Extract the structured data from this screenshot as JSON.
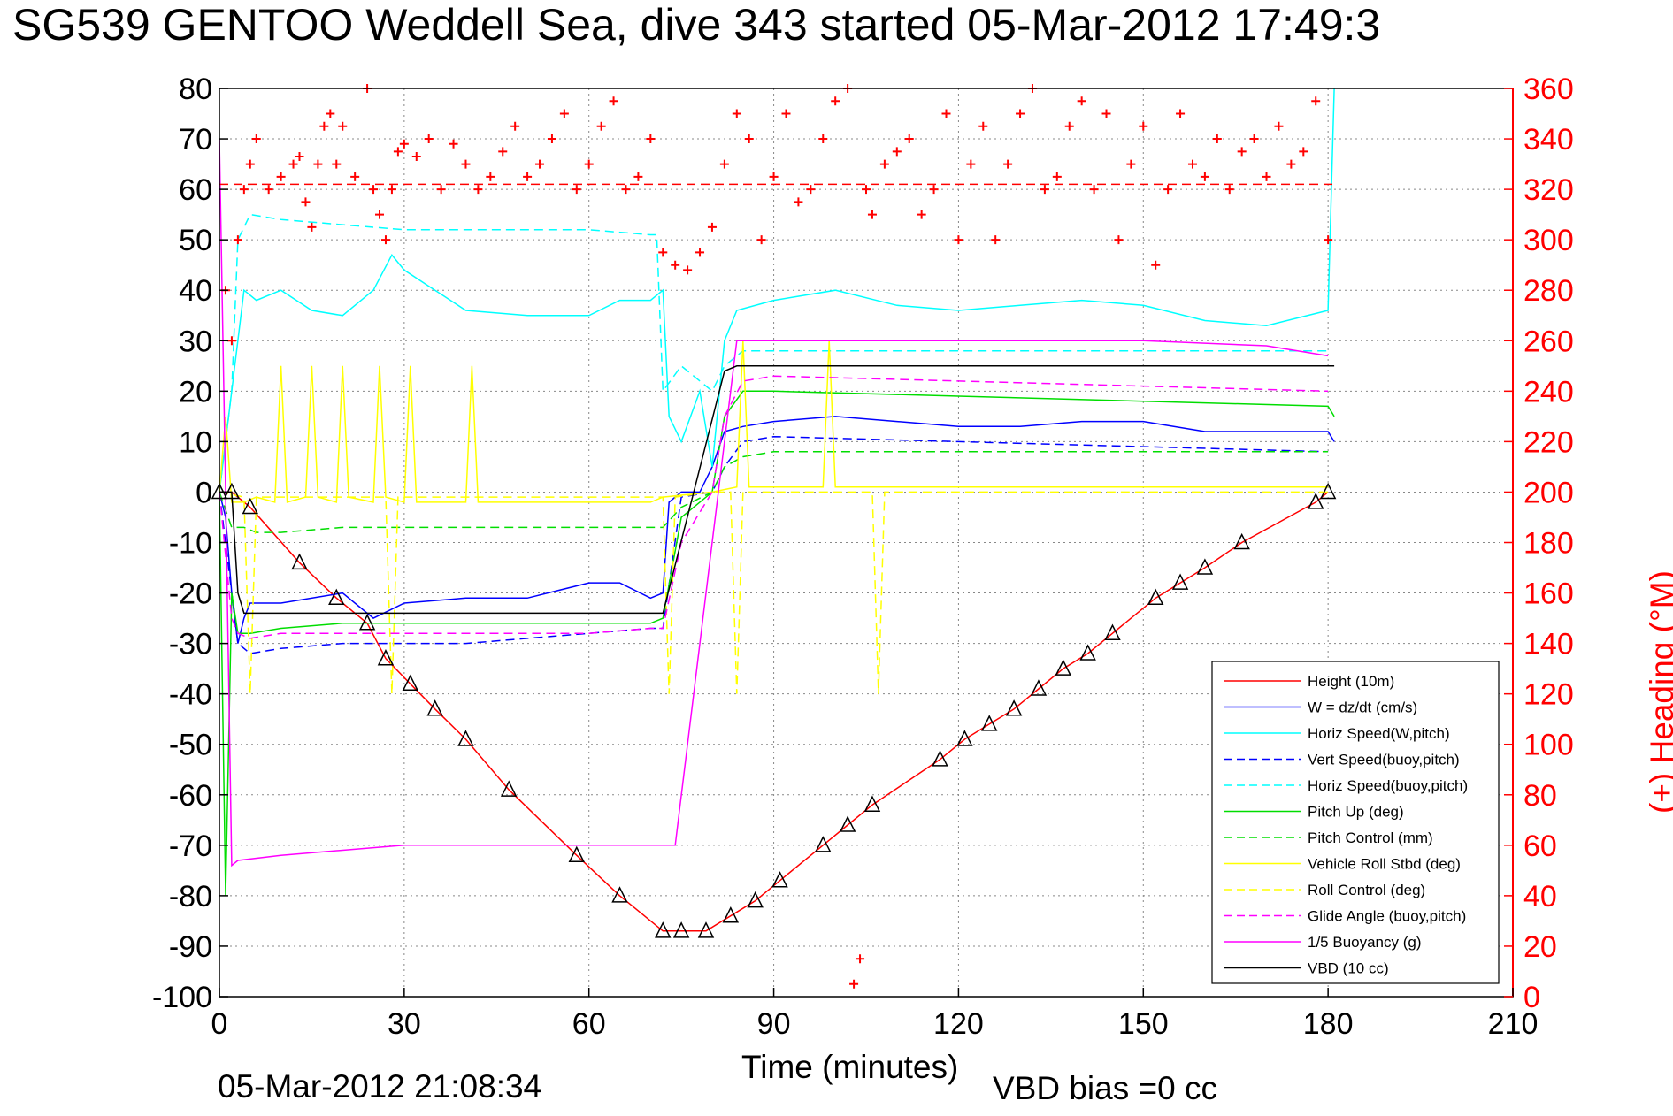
{
  "title": "SG539 GENTOO Weddell Sea, dive 343 started 05-Mar-2012 17:49:3",
  "timestamp": "05-Mar-2012 21:08:34",
  "vbd_bias": "VBD bias =0 cc",
  "colors": {
    "height": "#ff0000",
    "w": "#0000ff",
    "horiz": "#00ffff",
    "pitch": "#00dd00",
    "roll": "#ffff00",
    "glide": "#ff00ff",
    "buoyancy": "#ff00ff",
    "vbd": "#000000",
    "heading": "#ff0000"
  },
  "chart_data": {
    "type": "line",
    "xlabel": "Time (minutes)",
    "ylabel": "",
    "y2label": "(+) Heading (°M)",
    "xlim": [
      0,
      210
    ],
    "ylim": [
      -100,
      80
    ],
    "y2lim": [
      0,
      360
    ],
    "xticks": [
      0,
      30,
      60,
      90,
      120,
      150,
      180,
      210
    ],
    "yticks": [
      80,
      70,
      60,
      50,
      40,
      30,
      20,
      10,
      0,
      -10,
      -20,
      -30,
      -40,
      -50,
      -60,
      -70,
      -80,
      -90,
      -100
    ],
    "y2ticks": [
      360,
      340,
      320,
      300,
      280,
      260,
      240,
      220,
      200,
      180,
      160,
      140,
      120,
      100,
      80,
      60,
      40,
      20,
      0
    ],
    "grid": true,
    "legend_position": "bottom-right",
    "legend": [
      "Height (10m)",
      "W = dz/dt (cm/s)",
      "Horiz Speed(W,pitch)",
      "Vert Speed(buoy,pitch)",
      "Horiz Speed(buoy,pitch)",
      "Pitch Up (deg)",
      "Pitch Control (mm)",
      "Vehicle Roll Stbd (deg)",
      "Roll Control (deg)",
      "Glide Angle (buoy,pitch)",
      "1/5 Buoyancy (g)",
      "VBD (10 cc)"
    ],
    "series": [
      {
        "name": "Height (10m)",
        "color": "#ff0000",
        "style": "solid",
        "marker": "triangle",
        "x": [
          0,
          2,
          5,
          13,
          19,
          24,
          27,
          31,
          35,
          40,
          47,
          58,
          65,
          72,
          75,
          79,
          83,
          87,
          91,
          98,
          102,
          106,
          117,
          121,
          125,
          129,
          133,
          137,
          141,
          145,
          152,
          156,
          160,
          166,
          178,
          180
        ],
        "y": [
          0,
          0,
          -3,
          -14,
          -21,
          -26,
          -33,
          -38,
          -43,
          -49,
          -59,
          -72,
          -80,
          -87,
          -87,
          -87,
          -84,
          -81,
          -77,
          -70,
          -66,
          -62,
          -53,
          -49,
          -46,
          -43,
          -39,
          -35,
          -32,
          -28,
          -21,
          -18,
          -15,
          -10,
          -2,
          0
        ]
      },
      {
        "name": "W = dz/dt (cm/s)",
        "color": "#0000ff",
        "style": "solid",
        "x": [
          0,
          1,
          2,
          3,
          4,
          5,
          10,
          20,
          25,
          30,
          40,
          50,
          60,
          65,
          70,
          72,
          73,
          75,
          78,
          80,
          82,
          85,
          90,
          100,
          110,
          120,
          130,
          140,
          150,
          160,
          170,
          180,
          181
        ],
        "y": [
          0,
          -5,
          -20,
          -30,
          -25,
          -22,
          -22,
          -20,
          -25,
          -22,
          -21,
          -21,
          -18,
          -18,
          -21,
          -20,
          -2,
          0,
          0,
          5,
          12,
          13,
          14,
          15,
          14,
          13,
          13,
          14,
          14,
          12,
          12,
          12,
          10
        ]
      },
      {
        "name": "Horiz Speed(W,pitch)",
        "color": "#00ffff",
        "style": "solid",
        "x": [
          0,
          2,
          4,
          6,
          10,
          15,
          20,
          25,
          28,
          30,
          35,
          40,
          50,
          60,
          65,
          70,
          72,
          73,
          75,
          78,
          80,
          82,
          84,
          90,
          100,
          110,
          120,
          130,
          140,
          150,
          160,
          170,
          180,
          181
        ],
        "y": [
          0,
          20,
          40,
          38,
          40,
          36,
          35,
          40,
          47,
          44,
          40,
          36,
          35,
          35,
          38,
          38,
          40,
          15,
          10,
          20,
          5,
          30,
          36,
          38,
          40,
          37,
          36,
          37,
          38,
          37,
          34,
          33,
          36,
          80
        ]
      },
      {
        "name": "Vert Speed(buoy,pitch)",
        "color": "#0000ff",
        "style": "dashed",
        "x": [
          0,
          2,
          3,
          5,
          10,
          20,
          30,
          40,
          50,
          60,
          70,
          72,
          75,
          80,
          82,
          85,
          90,
          120,
          150,
          180
        ],
        "y": [
          0,
          -20,
          -30,
          -32,
          -31,
          -30,
          -30,
          -30,
          -29,
          -28,
          -27,
          -27,
          -1,
          0,
          5,
          10,
          11,
          10,
          9,
          8
        ]
      },
      {
        "name": "Horiz Speed(buoy,pitch)",
        "color": "#00ffff",
        "style": "dashed",
        "x": [
          0,
          2,
          3,
          5,
          10,
          20,
          30,
          40,
          50,
          60,
          70,
          71,
          72,
          75,
          80,
          82,
          85,
          90,
          120,
          150,
          180
        ],
        "y": [
          0,
          20,
          50,
          55,
          54,
          53,
          52,
          52,
          52,
          52,
          51,
          51,
          20,
          25,
          20,
          25,
          28,
          28,
          28,
          28,
          28
        ]
      },
      {
        "name": "Pitch Up (deg)",
        "color": "#00dd00",
        "style": "solid",
        "x": [
          0,
          1,
          2,
          3,
          5,
          10,
          20,
          30,
          40,
          50,
          60,
          70,
          72,
          75,
          80,
          82,
          85,
          90,
          120,
          150,
          180,
          181
        ],
        "y": [
          0,
          -80,
          -20,
          -28,
          -28,
          -27,
          -26,
          -26,
          -26,
          -26,
          -26,
          -26,
          -25,
          -5,
          0,
          15,
          20,
          20,
          19,
          18,
          17,
          15
        ]
      },
      {
        "name": "Pitch Control (mm)",
        "color": "#00dd00",
        "style": "dashed",
        "x": [
          0,
          2,
          4,
          6,
          10,
          20,
          30,
          40,
          50,
          60,
          70,
          72,
          75,
          80,
          82,
          85,
          90,
          120,
          150,
          180
        ],
        "y": [
          0,
          -7,
          -7,
          -8,
          -8,
          -7,
          -7,
          -7,
          -7,
          -7,
          -7,
          -7,
          -3,
          0,
          5,
          7,
          8,
          8,
          8,
          8
        ]
      },
      {
        "name": "Vehicle Roll Stbd (deg)",
        "color": "#ffff00",
        "style": "solid",
        "x": [
          0,
          1,
          2,
          4,
          6,
          9,
          10,
          11,
          14,
          15,
          16,
          19,
          20,
          21,
          25,
          26,
          27,
          30,
          31,
          32,
          40,
          41,
          42,
          50,
          60,
          70,
          72,
          80,
          84,
          85,
          86,
          90,
          98,
          99,
          100,
          110,
          120,
          130,
          140,
          150,
          160,
          170,
          180
        ],
        "y": [
          0,
          15,
          -2,
          -2,
          -1,
          -2,
          25,
          -2,
          -1,
          25,
          -1,
          -2,
          25,
          -1,
          -2,
          25,
          -1,
          -2,
          25,
          -2,
          -2,
          25,
          -2,
          -2,
          -2,
          -2,
          -1,
          0,
          1,
          30,
          1,
          1,
          1,
          30,
          1,
          1,
          1,
          1,
          1,
          1,
          1,
          1,
          1
        ]
      },
      {
        "name": "Roll Control (deg)",
        "color": "#ffff00",
        "style": "dashed",
        "x": [
          0,
          4,
          5,
          6,
          20,
          27,
          28,
          29,
          40,
          60,
          70,
          72,
          73,
          74,
          80,
          83,
          84,
          85,
          90,
          100,
          106,
          107,
          108,
          120,
          140,
          160,
          180
        ],
        "y": [
          0,
          -1,
          -40,
          -1,
          -1,
          -1,
          -40,
          -1,
          -1,
          -1,
          -1,
          -1,
          -40,
          -1,
          0,
          0,
          -40,
          0,
          0,
          0,
          0,
          -40,
          0,
          0,
          0,
          0,
          0
        ]
      },
      {
        "name": "Glide Angle (buoy,pitch)",
        "color": "#ff00ff",
        "style": "dashed",
        "x": [
          0,
          2,
          3,
          5,
          10,
          20,
          30,
          40,
          50,
          60,
          70,
          72,
          75,
          80,
          82,
          85,
          90,
          120,
          150,
          180
        ],
        "y": [
          0,
          -25,
          -28,
          -29,
          -28,
          -28,
          -28,
          -28,
          -28,
          -28,
          -27,
          -27,
          -10,
          0,
          15,
          22,
          23,
          22,
          21,
          20
        ]
      },
      {
        "name": "1/5 Buoyancy (g)",
        "color": "#ff00ff",
        "style": "solid",
        "x": [
          0,
          1,
          2,
          3,
          10,
          20,
          30,
          40,
          50,
          60,
          70,
          74,
          84,
          90,
          120,
          150,
          170,
          180
        ],
        "y": [
          70,
          0,
          -74,
          -73,
          -72,
          -71,
          -70,
          -70,
          -70,
          -70,
          -70,
          -70,
          30,
          30,
          30,
          30,
          29,
          27
        ]
      },
      {
        "name": "VBD (10 cc)",
        "color": "#000000",
        "style": "solid",
        "x": [
          0,
          2,
          3,
          4,
          5,
          60,
          70,
          72,
          82,
          84,
          120,
          150,
          180,
          181
        ],
        "y": [
          0,
          0,
          -20,
          -24,
          -24,
          -24,
          -24,
          -24,
          24,
          25,
          25,
          25,
          25,
          25
        ]
      },
      {
        "name": "",
        "color": "#ff0000",
        "style": "dashed",
        "axis": "right",
        "x": [
          0,
          181
        ],
        "y": [
          322,
          322
        ]
      },
      {
        "name": "",
        "color": "#ff0000",
        "style": "plus-markers",
        "axis": "right",
        "x": [
          1,
          2,
          3,
          4,
          5,
          6,
          8,
          10,
          12,
          13,
          14,
          15,
          16,
          17,
          18,
          19,
          20,
          22,
          24,
          25,
          26,
          27,
          28,
          29,
          30,
          32,
          34,
          36,
          38,
          40,
          42,
          44,
          46,
          48,
          50,
          52,
          54,
          56,
          58,
          60,
          62,
          64,
          66,
          68,
          70,
          72,
          74,
          76,
          78,
          80,
          82,
          84,
          86,
          88,
          90,
          92,
          94,
          96,
          98,
          100,
          102,
          103,
          104,
          105,
          106,
          108,
          110,
          112,
          114,
          116,
          118,
          120,
          122,
          124,
          126,
          128,
          130,
          132,
          134,
          136,
          138,
          140,
          142,
          144,
          146,
          148,
          150,
          152,
          154,
          156,
          158,
          160,
          162,
          164,
          166,
          168,
          170,
          172,
          174,
          176,
          178,
          180
        ],
        "y": [
          280,
          260,
          300,
          320,
          330,
          340,
          320,
          325,
          330,
          333,
          315,
          305,
          330,
          345,
          350,
          330,
          345,
          325,
          360,
          320,
          310,
          300,
          320,
          335,
          338,
          333,
          340,
          320,
          338,
          330,
          320,
          325,
          335,
          345,
          325,
          330,
          340,
          350,
          320,
          330,
          345,
          355,
          320,
          325,
          340,
          295,
          290,
          288,
          295,
          305,
          330,
          350,
          340,
          300,
          325,
          350,
          315,
          320,
          340,
          355,
          360,
          5,
          15,
          320,
          310,
          330,
          335,
          340,
          310,
          320,
          350,
          300,
          330,
          345,
          300,
          330,
          350,
          360,
          320,
          325,
          345,
          355,
          320,
          350,
          300,
          330,
          345,
          290,
          320,
          350,
          330,
          325,
          340,
          320,
          335,
          340,
          325,
          345,
          330,
          335,
          355,
          300
        ]
      }
    ]
  }
}
